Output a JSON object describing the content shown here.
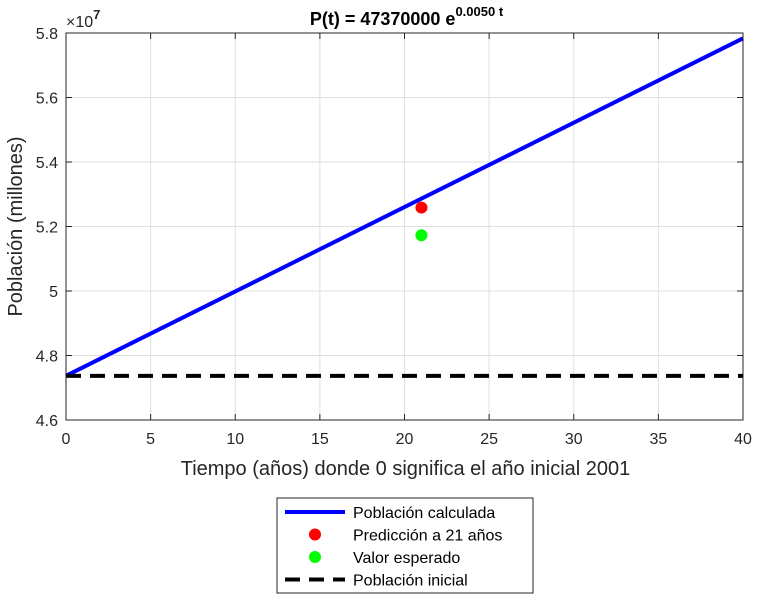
{
  "chart_data": {
    "type": "line",
    "title": {
      "main": "P(t) = 47370000 e",
      "exponent": "0.0050 t"
    },
    "xlabel": "Tiempo (años) donde 0 significa el año inicial 2001",
    "ylabel": "Población (millones)",
    "y_multiplier": {
      "base": "×10",
      "exponent": "7"
    },
    "xlim": [
      0,
      40
    ],
    "ylim": [
      4.6,
      5.8
    ],
    "x_ticks": [
      0,
      5,
      10,
      15,
      20,
      25,
      30,
      35,
      40
    ],
    "y_ticks": [
      4.6,
      4.8,
      5,
      5.2,
      5.4,
      5.6,
      5.8
    ],
    "y_tick_labels": [
      "4.6",
      "4.8",
      "5",
      "5.2",
      "5.4",
      "5.6",
      "5.8"
    ],
    "grid": true,
    "legend_position": "below",
    "model": {
      "P0": 47370000,
      "k": 0.005,
      "scale": 10000000
    },
    "series": [
      {
        "name": "Población calculada",
        "kind": "line",
        "color": "#0000ff",
        "x": [
          0,
          40
        ],
        "y": [
          4.737,
          5.7835
        ],
        "style": "solid"
      },
      {
        "name": "Predicción a 21 años",
        "kind": "marker",
        "color": "#ff0000",
        "x": [
          21
        ],
        "y": [
          5.2587
        ]
      },
      {
        "name": "Valor esperado",
        "kind": "marker",
        "color": "#00ff00",
        "x": [
          21
        ],
        "y": [
          5.173
        ]
      },
      {
        "name": "Población inicial",
        "kind": "line",
        "color": "#000000",
        "x": [
          0,
          40
        ],
        "y": [
          4.737,
          4.737
        ],
        "style": "dashed"
      }
    ]
  }
}
